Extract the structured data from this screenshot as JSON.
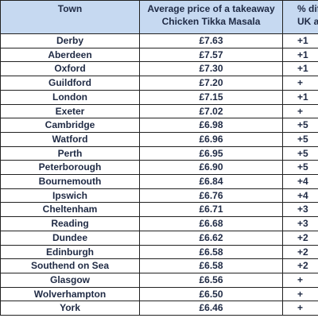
{
  "table": {
    "header": [
      "Town",
      [
        "Average price of a takeaway",
        "Chicken Tikka Masala"
      ],
      [
        "% diffe",
        "UK a"
      ]
    ],
    "rows": [
      [
        "Derby",
        "£7.63",
        "+1"
      ],
      [
        "Aberdeen",
        "£7.57",
        "+1"
      ],
      [
        "Oxford",
        "£7.30",
        "+1"
      ],
      [
        "Guildford",
        "£7.20",
        "+"
      ],
      [
        "London",
        "£7.15",
        "+1"
      ],
      [
        "Exeter",
        "£7.02",
        "+"
      ],
      [
        "Cambridge",
        "£6.98",
        "+5"
      ],
      [
        "Watford",
        "£6.96",
        "+5"
      ],
      [
        "Perth",
        "£6.95",
        "+5"
      ],
      [
        "Peterborough",
        "£6.90",
        "+5"
      ],
      [
        "Bournemouth",
        "£6.84",
        "+4"
      ],
      [
        "Ipswich",
        "£6.76",
        "+4"
      ],
      [
        "Cheltenham",
        "£6.71",
        "+3"
      ],
      [
        "Reading",
        "£6.68",
        "+3"
      ],
      [
        "Dundee",
        "£6.62",
        "+2"
      ],
      [
        "Edinburgh",
        "£6.58",
        "+2"
      ],
      [
        "Southend on Sea",
        "£6.58",
        "+2"
      ],
      [
        "Glasgow",
        "£6.56",
        "+"
      ],
      [
        "Wolverhampton",
        "£6.50",
        "+"
      ],
      [
        "York",
        "£6.46",
        "+"
      ]
    ]
  }
}
